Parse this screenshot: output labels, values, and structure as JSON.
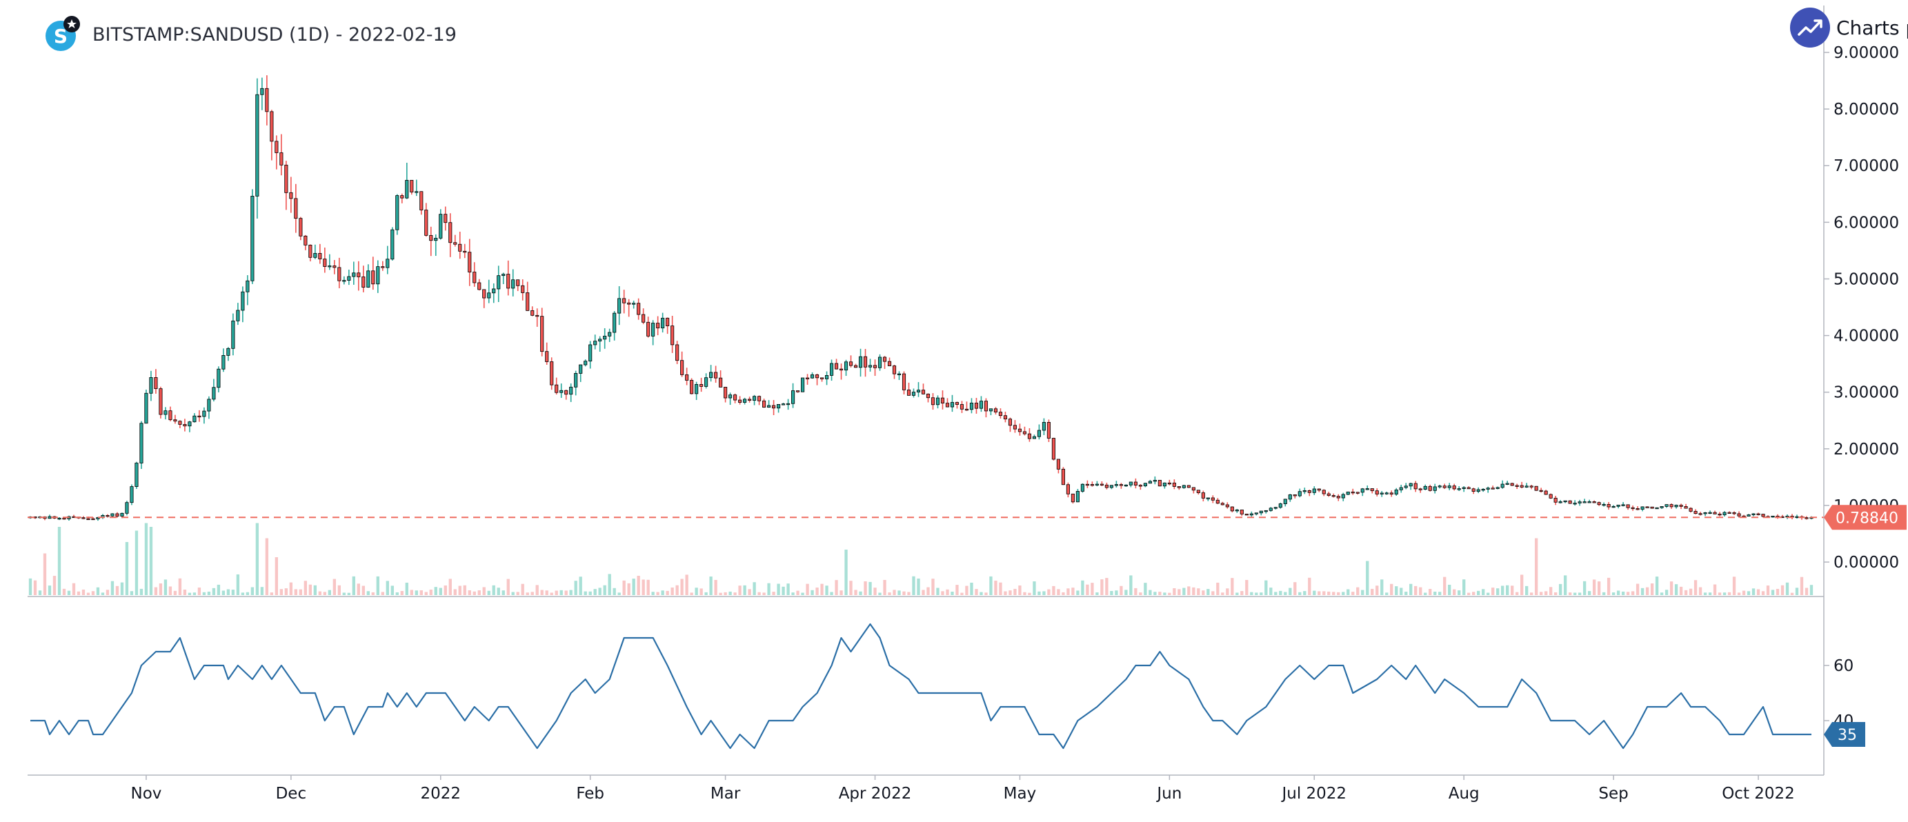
{
  "header": {
    "title": "BITSTAMP:SANDUSD (1D) - 2022-02-19",
    "brand_text": "Charts p",
    "logo_letter": "S"
  },
  "colors": {
    "up": "#26a69a",
    "down": "#ef5350",
    "candle_border": "#000000",
    "vol_up": "#a8e0d6",
    "vol_down": "#f8c5c5",
    "indicator": "#2a6ea6",
    "last_price": "#ef6c60",
    "axis_text": "#131722",
    "axis_line": "#b2b5be",
    "brand": "#3f51b5",
    "logo": "#29a8e0"
  },
  "chart_data": {
    "type": "candlestick",
    "symbol": "BITSTAMP:SANDUSD",
    "interval": "1D",
    "x_start": "2021-10-08",
    "x_end": "2022-10-12",
    "ylim": [
      -0.45,
      9.0
    ],
    "y_ticks": [
      "9.00000",
      "8.00000",
      "7.00000",
      "6.00000",
      "5.00000",
      "4.00000",
      "3.00000",
      "2.00000",
      "1.00000",
      "0.00000"
    ],
    "x_ticks": [
      "Nov",
      "Dec",
      "2022",
      "Feb",
      "Mar",
      "Apr 2022",
      "May",
      "Jun",
      "Jul 2022",
      "Aug",
      "Sep",
      "Oct 2022"
    ],
    "x_tick_dates": [
      "2021-11-01",
      "2021-12-01",
      "2022-01-01",
      "2022-02-01",
      "2022-03-01",
      "2022-04-01",
      "2022-05-01",
      "2022-06-01",
      "2022-07-01",
      "2022-08-01",
      "2022-09-01",
      "2022-10-01"
    ],
    "last_price": "0.78840",
    "close_anchors": [
      [
        "2021-10-08",
        0.79
      ],
      [
        "2021-10-20",
        0.77
      ],
      [
        "2021-10-27",
        0.85
      ],
      [
        "2021-10-29",
        1.3
      ],
      [
        "2021-10-30",
        1.8
      ],
      [
        "2021-11-01",
        3.0
      ],
      [
        "2021-11-02",
        3.3
      ],
      [
        "2021-11-04",
        2.7
      ],
      [
        "2021-11-09",
        2.4
      ],
      [
        "2021-11-14",
        2.8
      ],
      [
        "2021-11-17",
        3.6
      ],
      [
        "2021-11-19",
        4.2
      ],
      [
        "2021-11-22",
        5.0
      ],
      [
        "2021-11-24",
        8.0
      ],
      [
        "2021-11-25",
        8.2
      ],
      [
        "2021-11-27",
        7.4
      ],
      [
        "2021-11-29",
        6.9
      ],
      [
        "2021-12-01",
        6.5
      ],
      [
        "2021-12-04",
        5.6
      ],
      [
        "2021-12-08",
        5.2
      ],
      [
        "2021-12-12",
        4.9
      ],
      [
        "2021-12-17",
        5.0
      ],
      [
        "2021-12-20",
        5.1
      ],
      [
        "2021-12-23",
        6.4
      ],
      [
        "2021-12-25",
        6.75
      ],
      [
        "2021-12-27",
        6.4
      ],
      [
        "2021-12-29",
        5.8
      ],
      [
        "2022-01-02",
        6.0
      ],
      [
        "2022-01-05",
        5.5
      ],
      [
        "2022-01-09",
        4.7
      ],
      [
        "2022-01-13",
        5.0
      ],
      [
        "2022-01-17",
        5.0
      ],
      [
        "2022-01-21",
        4.2
      ],
      [
        "2022-01-24",
        3.1
      ],
      [
        "2022-01-27",
        2.9
      ],
      [
        "2022-01-31",
        3.6
      ],
      [
        "2022-02-03",
        4.0
      ],
      [
        "2022-02-06",
        4.3
      ],
      [
        "2022-02-08",
        4.7
      ],
      [
        "2022-02-10",
        4.5
      ],
      [
        "2022-02-13",
        4.0
      ],
      [
        "2022-02-16",
        4.3
      ],
      [
        "2022-02-18",
        3.8
      ],
      [
        "2022-02-22",
        3.0
      ],
      [
        "2022-02-26",
        3.3
      ],
      [
        "2022-03-01",
        2.9
      ],
      [
        "2022-03-07",
        2.85
      ],
      [
        "2022-03-13",
        2.75
      ],
      [
        "2022-03-17",
        3.2
      ],
      [
        "2022-03-23",
        3.4
      ],
      [
        "2022-03-27",
        3.5
      ],
      [
        "2022-04-01",
        3.55
      ],
      [
        "2022-04-05",
        3.4
      ],
      [
        "2022-04-08",
        3.0
      ],
      [
        "2022-04-13",
        2.85
      ],
      [
        "2022-04-18",
        2.7
      ],
      [
        "2022-04-22",
        2.8
      ],
      [
        "2022-04-26",
        2.65
      ],
      [
        "2022-05-01",
        2.3
      ],
      [
        "2022-05-04",
        2.15
      ],
      [
        "2022-05-06",
        2.4
      ],
      [
        "2022-05-09",
        1.6
      ],
      [
        "2022-05-12",
        1.05
      ],
      [
        "2022-05-14",
        1.4
      ],
      [
        "2022-05-20",
        1.35
      ],
      [
        "2022-05-29",
        1.4
      ],
      [
        "2022-06-05",
        1.3
      ],
      [
        "2022-06-13",
        0.95
      ],
      [
        "2022-06-17",
        0.85
      ],
      [
        "2022-06-22",
        0.95
      ],
      [
        "2022-06-27",
        1.2
      ],
      [
        "2022-07-01",
        1.25
      ],
      [
        "2022-07-06",
        1.15
      ],
      [
        "2022-07-11",
        1.3
      ],
      [
        "2022-07-16",
        1.2
      ],
      [
        "2022-07-21",
        1.35
      ],
      [
        "2022-07-25",
        1.3
      ],
      [
        "2022-07-30",
        1.3
      ],
      [
        "2022-08-05",
        1.25
      ],
      [
        "2022-08-10",
        1.4
      ],
      [
        "2022-08-15",
        1.35
      ],
      [
        "2022-08-19",
        1.1
      ],
      [
        "2022-08-25",
        1.05
      ],
      [
        "2022-08-31",
        1.0
      ],
      [
        "2022-09-08",
        0.95
      ],
      [
        "2022-09-13",
        1.0
      ],
      [
        "2022-09-18",
        0.88
      ],
      [
        "2022-09-24",
        0.85
      ],
      [
        "2022-09-30",
        0.83
      ],
      [
        "2022-10-12",
        0.79
      ]
    ],
    "volume_spikes": [
      [
        "2021-10-11",
        0.55
      ],
      [
        "2021-10-14",
        0.9
      ],
      [
        "2021-10-28",
        0.7
      ],
      [
        "2021-10-30",
        0.85
      ],
      [
        "2021-11-01",
        0.95
      ],
      [
        "2021-11-02",
        0.9
      ],
      [
        "2021-11-24",
        0.95
      ],
      [
        "2021-11-26",
        0.75
      ],
      [
        "2021-11-28",
        0.5
      ],
      [
        "2022-03-26",
        0.6
      ],
      [
        "2022-08-16",
        0.75
      ],
      [
        "2022-07-12",
        0.45
      ]
    ],
    "indicator": {
      "type": "line",
      "y_ticks": [
        "60",
        "40"
      ],
      "ylim": [
        25,
        75
      ],
      "last_value": "35",
      "points": [
        [
          "2021-10-08",
          40
        ],
        [
          "2021-10-11",
          40
        ],
        [
          "2021-10-12",
          35
        ],
        [
          "2021-10-14",
          40
        ],
        [
          "2021-10-16",
          35
        ],
        [
          "2021-10-18",
          40
        ],
        [
          "2021-10-20",
          40
        ],
        [
          "2021-10-21",
          35
        ],
        [
          "2021-10-23",
          35
        ],
        [
          "2021-10-27",
          45
        ],
        [
          "2021-10-29",
          50
        ],
        [
          "2021-10-31",
          60
        ],
        [
          "2021-11-03",
          65
        ],
        [
          "2021-11-06",
          65
        ],
        [
          "2021-11-08",
          70
        ],
        [
          "2021-11-10",
          60
        ],
        [
          "2021-11-11",
          55
        ],
        [
          "2021-11-13",
          60
        ],
        [
          "2021-11-17",
          60
        ],
        [
          "2021-11-18",
          55
        ],
        [
          "2021-11-20",
          60
        ],
        [
          "2021-11-23",
          55
        ],
        [
          "2021-11-25",
          60
        ],
        [
          "2021-11-27",
          55
        ],
        [
          "2021-11-29",
          60
        ],
        [
          "2021-12-01",
          55
        ],
        [
          "2021-12-03",
          50
        ],
        [
          "2021-12-06",
          50
        ],
        [
          "2021-12-08",
          40
        ],
        [
          "2021-12-10",
          45
        ],
        [
          "2021-12-12",
          45
        ],
        [
          "2021-12-14",
          35
        ],
        [
          "2021-12-17",
          45
        ],
        [
          "2021-12-20",
          45
        ],
        [
          "2021-12-21",
          50
        ],
        [
          "2021-12-23",
          45
        ],
        [
          "2021-12-25",
          50
        ],
        [
          "2021-12-27",
          45
        ],
        [
          "2021-12-29",
          50
        ],
        [
          "2022-01-02",
          50
        ],
        [
          "2022-01-04",
          45
        ],
        [
          "2022-01-06",
          40
        ],
        [
          "2022-01-08",
          45
        ],
        [
          "2022-01-11",
          40
        ],
        [
          "2022-01-13",
          45
        ],
        [
          "2022-01-15",
          45
        ],
        [
          "2022-01-17",
          40
        ],
        [
          "2022-01-19",
          35
        ],
        [
          "2022-01-21",
          30
        ],
        [
          "2022-01-23",
          35
        ],
        [
          "2022-01-25",
          40
        ],
        [
          "2022-01-28",
          50
        ],
        [
          "2022-01-31",
          55
        ],
        [
          "2022-02-02",
          50
        ],
        [
          "2022-02-05",
          55
        ],
        [
          "2022-02-08",
          70
        ],
        [
          "2022-02-14",
          70
        ],
        [
          "2022-02-17",
          60
        ],
        [
          "2022-02-21",
          45
        ],
        [
          "2022-02-24",
          35
        ],
        [
          "2022-02-26",
          40
        ],
        [
          "2022-02-28",
          35
        ],
        [
          "2022-03-02",
          30
        ],
        [
          "2022-03-04",
          35
        ],
        [
          "2022-03-07",
          30
        ],
        [
          "2022-03-10",
          40
        ],
        [
          "2022-03-15",
          40
        ],
        [
          "2022-03-17",
          45
        ],
        [
          "2022-03-20",
          50
        ],
        [
          "2022-03-23",
          60
        ],
        [
          "2022-03-25",
          70
        ],
        [
          "2022-03-27",
          65
        ],
        [
          "2022-03-31",
          75
        ],
        [
          "2022-04-02",
          70
        ],
        [
          "2022-04-04",
          60
        ],
        [
          "2022-04-08",
          55
        ],
        [
          "2022-04-10",
          50
        ],
        [
          "2022-04-23",
          50
        ],
        [
          "2022-04-25",
          40
        ],
        [
          "2022-04-27",
          45
        ],
        [
          "2022-05-02",
          45
        ],
        [
          "2022-05-05",
          35
        ],
        [
          "2022-05-08",
          35
        ],
        [
          "2022-05-10",
          30
        ],
        [
          "2022-05-13",
          40
        ],
        [
          "2022-05-17",
          45
        ],
        [
          "2022-05-20",
          50
        ],
        [
          "2022-05-23",
          55
        ],
        [
          "2022-05-25",
          60
        ],
        [
          "2022-05-28",
          60
        ],
        [
          "2022-05-30",
          65
        ],
        [
          "2022-06-01",
          60
        ],
        [
          "2022-06-05",
          55
        ],
        [
          "2022-06-08",
          45
        ],
        [
          "2022-06-10",
          40
        ],
        [
          "2022-06-12",
          40
        ],
        [
          "2022-06-15",
          35
        ],
        [
          "2022-06-17",
          40
        ],
        [
          "2022-06-21",
          45
        ],
        [
          "2022-06-25",
          55
        ],
        [
          "2022-06-28",
          60
        ],
        [
          "2022-07-01",
          55
        ],
        [
          "2022-07-04",
          60
        ],
        [
          "2022-07-07",
          60
        ],
        [
          "2022-07-09",
          50
        ],
        [
          "2022-07-14",
          55
        ],
        [
          "2022-07-17",
          60
        ],
        [
          "2022-07-20",
          55
        ],
        [
          "2022-07-22",
          60
        ],
        [
          "2022-07-26",
          50
        ],
        [
          "2022-07-28",
          55
        ],
        [
          "2022-08-01",
          50
        ],
        [
          "2022-08-04",
          45
        ],
        [
          "2022-08-10",
          45
        ],
        [
          "2022-08-13",
          55
        ],
        [
          "2022-08-16",
          50
        ],
        [
          "2022-08-19",
          40
        ],
        [
          "2022-08-24",
          40
        ],
        [
          "2022-08-27",
          35
        ],
        [
          "2022-08-30",
          40
        ],
        [
          "2022-09-03",
          30
        ],
        [
          "2022-09-05",
          35
        ],
        [
          "2022-09-08",
          45
        ],
        [
          "2022-09-12",
          45
        ],
        [
          "2022-09-15",
          50
        ],
        [
          "2022-09-17",
          45
        ],
        [
          "2022-09-20",
          45
        ],
        [
          "2022-09-23",
          40
        ],
        [
          "2022-09-25",
          35
        ],
        [
          "2022-09-28",
          35
        ],
        [
          "2022-09-30",
          40
        ],
        [
          "2022-10-02",
          45
        ],
        [
          "2022-10-04",
          35
        ],
        [
          "2022-10-12",
          35
        ]
      ]
    }
  }
}
